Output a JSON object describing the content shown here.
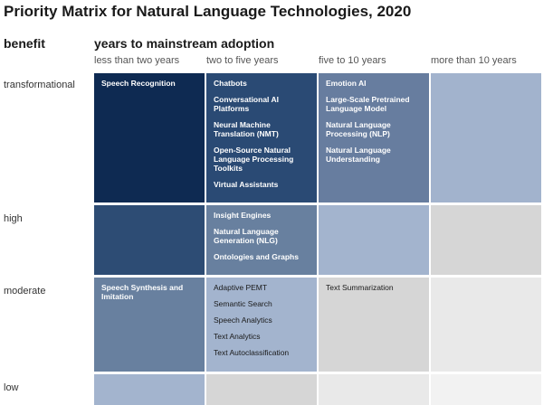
{
  "title": "Priority Matrix for Natural Language Technologies, 2020",
  "row_axis_label": "benefit",
  "column_axis_label": "years to mainstream adoption",
  "columns": [
    "less than two years",
    "two to five years",
    "five to 10 years",
    "more than 10 years"
  ],
  "rows": [
    "transformational",
    "high",
    "moderate",
    "low"
  ],
  "cells": {
    "transformational": {
      "less than two years": {
        "color": "#0e2a52",
        "items": [
          "Speech Recognition"
        ]
      },
      "two to five years": {
        "color": "#2a4a74",
        "items": [
          "Chatbots",
          "Conversational AI\nPlatforms",
          "Neural Machine\nTranslation (NMT)",
          "Open-Source Natural\nLanguage Processing\nToolkits",
          "Virtual Assistants"
        ]
      },
      "five to 10 years": {
        "color": "#677d9f",
        "items": [
          "Emotion AI",
          "Large-Scale Pretrained\nLanguage Model",
          "Natural Language\nProcessing (NLP)",
          "Natural Language\nUnderstanding"
        ]
      },
      "more than 10 years": {
        "color": "#a2b3cd",
        "items": []
      }
    },
    "high": {
      "less than two years": {
        "color": "#2d4c74",
        "items": []
      },
      "two to five years": {
        "color": "#68809f",
        "items": [
          "Insight Engines",
          "Natural Language\nGeneration (NLG)",
          "Ontologies and Graphs"
        ]
      },
      "five to 10 years": {
        "color": "#a3b4ce",
        "items": []
      },
      "more than 10 years": {
        "color": "#d6d6d6",
        "items": []
      }
    },
    "moderate": {
      "less than two years": {
        "color": "#68809f",
        "items": [
          "Speech Synthesis and\nImitation"
        ]
      },
      "two to five years": {
        "color": "#a3b4ce",
        "items": [
          "Adaptive PEMT",
          "Semantic Search",
          "Speech Analytics",
          "Text Analytics",
          "Text Autoclassification"
        ]
      },
      "five to 10 years": {
        "color": "#d6d6d6",
        "items": [
          "Text Summarization"
        ]
      },
      "more than 10 years": {
        "color": "#e9e9e9",
        "items": []
      }
    },
    "low": {
      "less than two years": {
        "color": "#a3b4ce",
        "items": []
      },
      "two to five years": {
        "color": "#d6d6d6",
        "items": []
      },
      "five to 10 years": {
        "color": "#e9e9e9",
        "items": []
      },
      "more than 10 years": {
        "color": "#f2f2f2",
        "items": []
      }
    }
  }
}
